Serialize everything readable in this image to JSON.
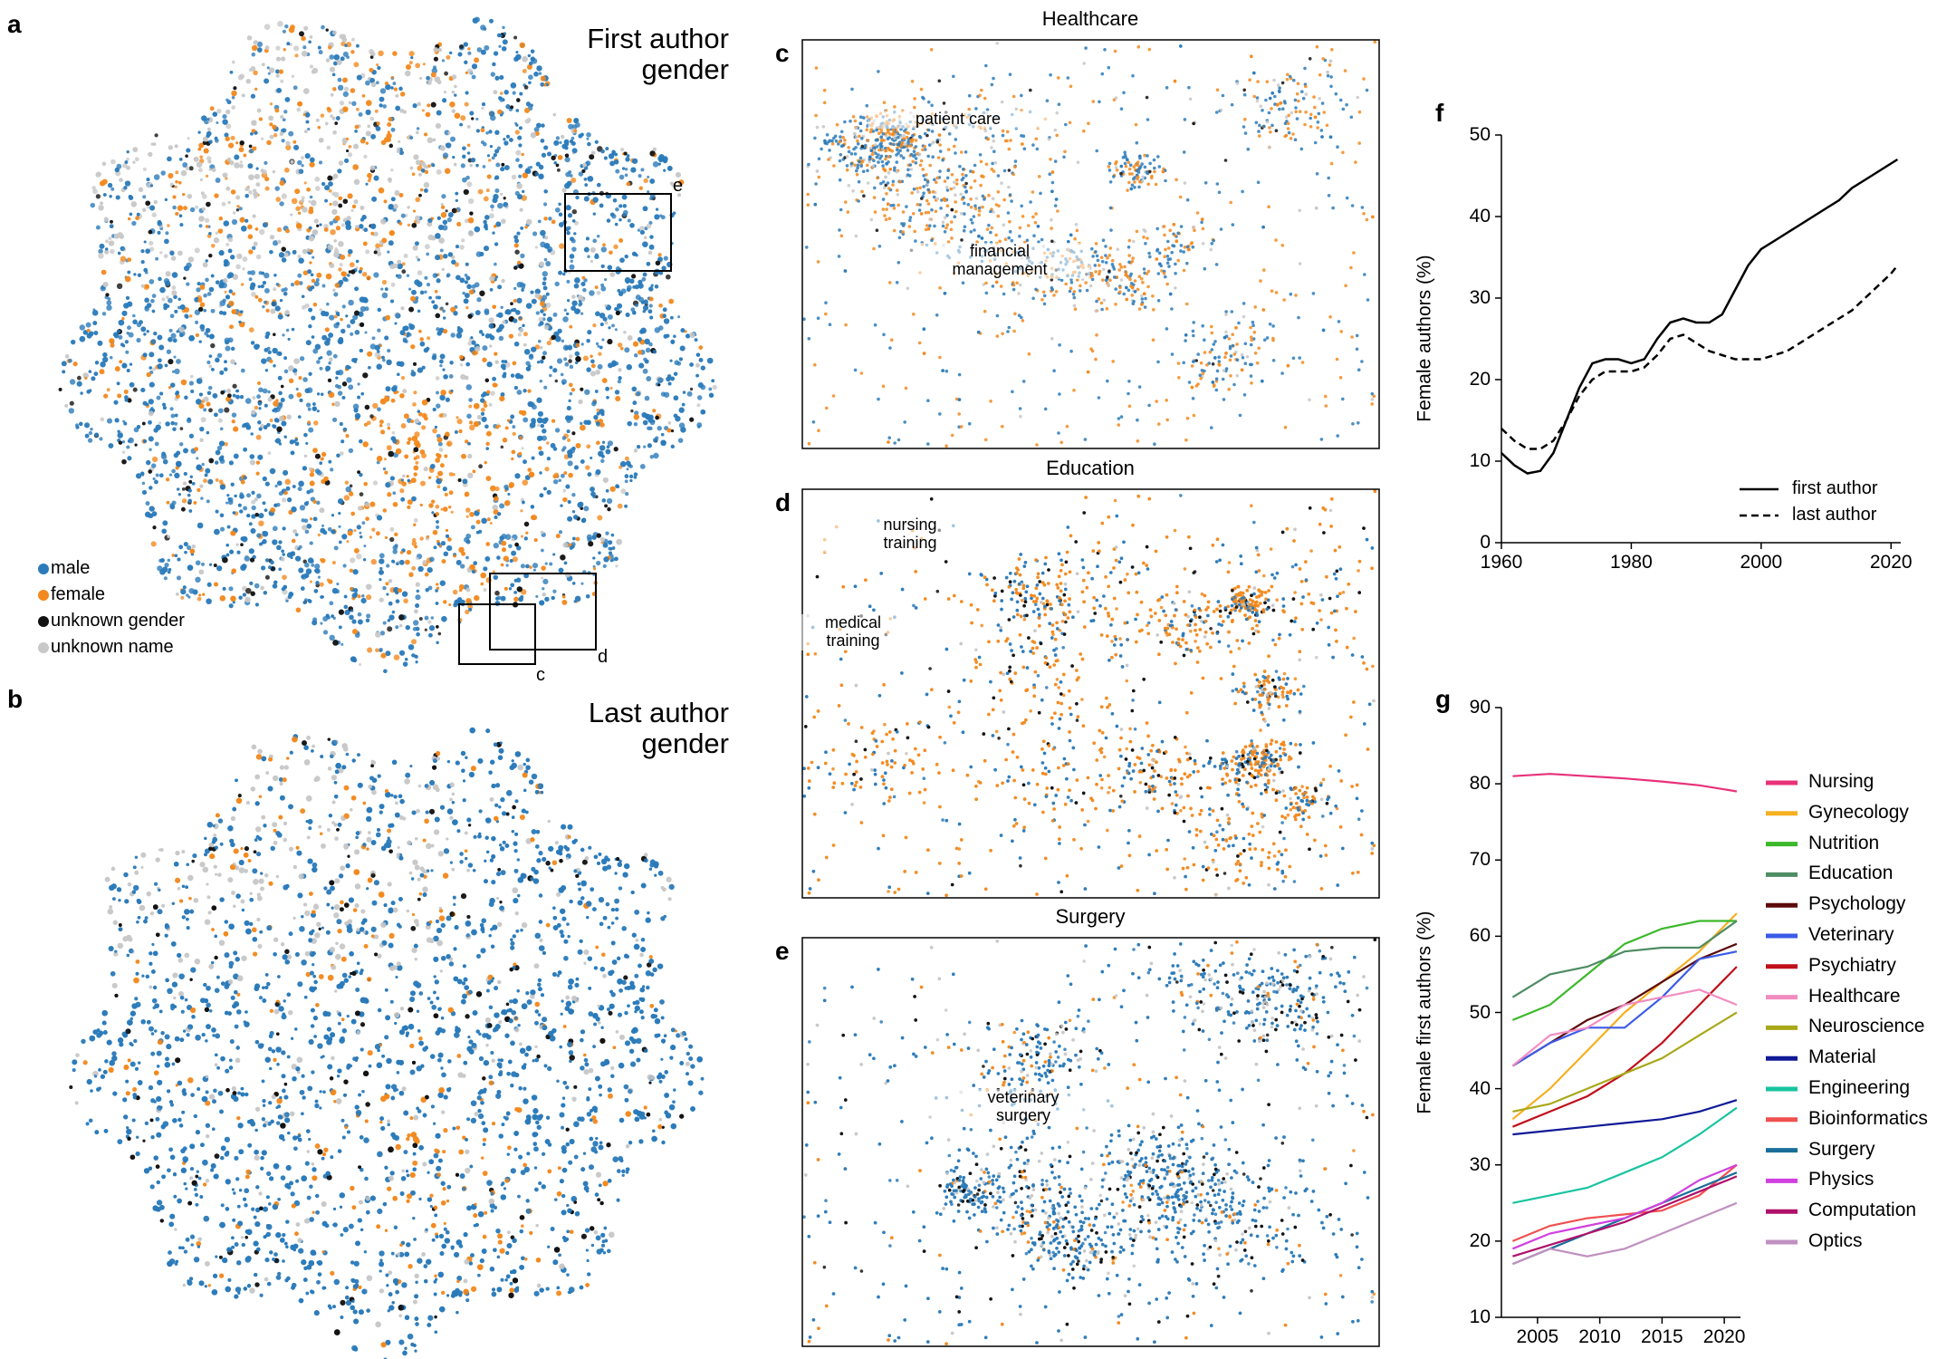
{
  "chart_data": [
    {
      "type": "embedding",
      "panel": "a",
      "title": "First author\ngender",
      "legend": [
        {
          "name": "male",
          "color": "#2b7bba"
        },
        {
          "name": "female",
          "color": "#f28a1e"
        },
        {
          "name": "unknown gender",
          "color": "#111111"
        },
        {
          "name": "unknown name",
          "color": "#c8c8c8"
        }
      ],
      "insets": [
        {
          "label": "e"
        },
        {
          "label": "c"
        },
        {
          "label": "d"
        }
      ]
    },
    {
      "type": "embedding",
      "panel": "b",
      "title": "Last author\ngender"
    },
    {
      "type": "zoom",
      "panel": "c",
      "title": "Healthcare",
      "annotations": [
        "patient care",
        "financial\nmanagement"
      ]
    },
    {
      "type": "zoom",
      "panel": "d",
      "title": "Education",
      "annotations": [
        "nursing\ntraining",
        "medical\ntraining"
      ]
    },
    {
      "type": "zoom",
      "panel": "e",
      "title": "Surgery",
      "annotations": [
        "veterinary\nsurgery"
      ]
    },
    {
      "type": "line",
      "panel": "f",
      "ylabel": "Female authors (%)",
      "x": [
        1960,
        1962,
        1964,
        1966,
        1968,
        1970,
        1972,
        1974,
        1976,
        1978,
        1980,
        1982,
        1984,
        1986,
        1988,
        1990,
        1992,
        1994,
        1996,
        1998,
        2000,
        2002,
        2004,
        2006,
        2008,
        2010,
        2012,
        2014,
        2016,
        2018,
        2020,
        2021
      ],
      "series": [
        {
          "name": "first author",
          "color": "#000000",
          "dash": false,
          "values": [
            11,
            9.5,
            8.5,
            8.8,
            11,
            15,
            19,
            22,
            22.5,
            22.5,
            22,
            22.5,
            25,
            27,
            27.5,
            27,
            27,
            28,
            31,
            34,
            36,
            37,
            38,
            39,
            40,
            41,
            42,
            43.5,
            44.5,
            45.5,
            46.5,
            47
          ]
        },
        {
          "name": "last author",
          "color": "#000000",
          "dash": true,
          "values": [
            14,
            12.5,
            11.5,
            11.5,
            12.5,
            15,
            18,
            20,
            21,
            21,
            21,
            21.5,
            23,
            25,
            25.5,
            24.5,
            23.5,
            23,
            22.5,
            22.5,
            22.5,
            23,
            23.5,
            24.5,
            25.5,
            26.5,
            27.5,
            28.5,
            30,
            31.5,
            33,
            34
          ]
        }
      ],
      "xlim": [
        1960,
        2021.5
      ],
      "xticks": [
        1960,
        1980,
        2000,
        2020
      ],
      "ylim": [
        0,
        50
      ],
      "yticks": [
        0,
        10,
        20,
        30,
        40,
        50
      ]
    },
    {
      "type": "line",
      "panel": "g",
      "ylabel": "Female first authors (%)",
      "x": [
        2003,
        2006,
        2009,
        2012,
        2015,
        2018,
        2021
      ],
      "series": [
        {
          "name": "Nursing",
          "color": "#e8317a",
          "values": [
            81,
            81.3,
            81,
            80.7,
            80.3,
            79.8,
            79
          ]
        },
        {
          "name": "Gynecology",
          "color": "#f5b020",
          "values": [
            36,
            40,
            45,
            50,
            54,
            58,
            63
          ]
        },
        {
          "name": "Nutrition",
          "color": "#3cb82b",
          "values": [
            49,
            51,
            55,
            59,
            61,
            62,
            62
          ]
        },
        {
          "name": "Education",
          "color": "#4e8c63",
          "values": [
            52,
            55,
            56,
            58,
            58.5,
            58.5,
            62
          ]
        },
        {
          "name": "Psychology",
          "color": "#5c0a0a",
          "values": [
            43,
            46,
            49,
            51,
            54,
            57,
            59
          ]
        },
        {
          "name": "Veterinary",
          "color": "#3b5ce8",
          "values": [
            43,
            46,
            48,
            48,
            52,
            57,
            58
          ]
        },
        {
          "name": "Psychiatry",
          "color": "#c0101a",
          "values": [
            35,
            37,
            39,
            42,
            46,
            51,
            56
          ]
        },
        {
          "name": "Healthcare",
          "color": "#f28cc0",
          "values": [
            43,
            47,
            48,
            51,
            52,
            53,
            51
          ]
        },
        {
          "name": "Neuroscience",
          "color": "#a8a818",
          "values": [
            37,
            38,
            40,
            42,
            44,
            47,
            50
          ]
        },
        {
          "name": "Material",
          "color": "#101a96",
          "values": [
            34,
            34.5,
            35,
            35.5,
            36,
            37,
            38.5
          ]
        },
        {
          "name": "Engineering",
          "color": "#18c4a0",
          "values": [
            25,
            26,
            27,
            29,
            31,
            34,
            37.5
          ]
        },
        {
          "name": "Bioinformatics",
          "color": "#f05050",
          "values": [
            20,
            22,
            23,
            23.5,
            24,
            26,
            30
          ]
        },
        {
          "name": "Surgery",
          "color": "#1a6e9a",
          "values": [
            17,
            19,
            21,
            23,
            25,
            27,
            29
          ]
        },
        {
          "name": "Physics",
          "color": "#d040e0",
          "values": [
            19,
            21,
            22,
            23,
            25,
            28,
            30
          ]
        },
        {
          "name": "Computation",
          "color": "#b0106a",
          "values": [
            18,
            19.5,
            21,
            22.5,
            24.5,
            26.5,
            28.5
          ]
        },
        {
          "name": "Optics",
          "color": "#c090c0",
          "values": [
            17,
            19,
            18,
            19,
            21,
            23,
            25
          ]
        }
      ],
      "xlim": [
        2002.1,
        2021.3
      ],
      "xticks": [
        2005,
        2010,
        2015,
        2020
      ],
      "ylim": [
        10,
        90
      ],
      "yticks": [
        10,
        20,
        30,
        40,
        50,
        60,
        70,
        80,
        90
      ]
    }
  ]
}
